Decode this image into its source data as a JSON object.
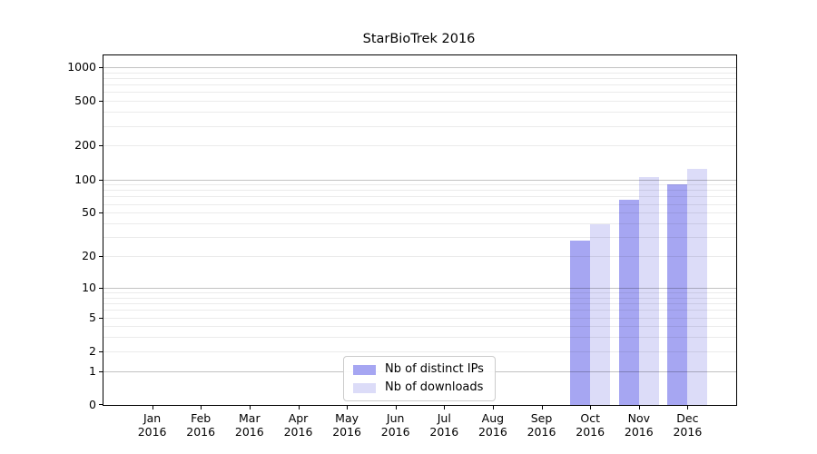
{
  "chart_data": {
    "type": "bar",
    "title": "StarBioTrek 2016",
    "categories": [
      "Jan",
      "Feb",
      "Mar",
      "Apr",
      "May",
      "Jun",
      "Jul",
      "Aug",
      "Sep",
      "Oct",
      "Nov",
      "Dec"
    ],
    "x_year_label": "2016",
    "series": [
      {
        "name": "Nb of distinct IPs",
        "color": "#a6a6f2",
        "values": [
          0,
          0,
          0,
          0,
          0,
          0,
          0,
          0,
          0,
          28,
          66,
          90
        ]
      },
      {
        "name": "Nb of downloads",
        "color": "#dcdcf8",
        "values": [
          0,
          0,
          0,
          0,
          0,
          0,
          0,
          0,
          0,
          39,
          105,
          124
        ]
      }
    ],
    "y_axis": {
      "scale": "log10(value+1)",
      "ticks": [
        0,
        1,
        2,
        5,
        10,
        20,
        50,
        100,
        200,
        500,
        1000
      ],
      "major_gridlines": [
        1,
        10,
        100,
        1000
      ],
      "minor_gridlines": [
        2,
        3,
        4,
        5,
        6,
        7,
        8,
        9,
        20,
        30,
        40,
        50,
        60,
        70,
        80,
        90,
        200,
        300,
        400,
        500,
        600,
        700,
        800,
        900
      ],
      "ylim": [
        0,
        1270
      ]
    },
    "legend": {
      "position": "lower center"
    },
    "grid": true
  },
  "colors": {
    "background": "#ffffff",
    "axis": "#000000",
    "text": "#000000",
    "major_grid": "rgba(0,0,0,0.24)",
    "minor_grid": "rgba(0,0,0,0.08)",
    "legend_border": "#cccccc"
  }
}
